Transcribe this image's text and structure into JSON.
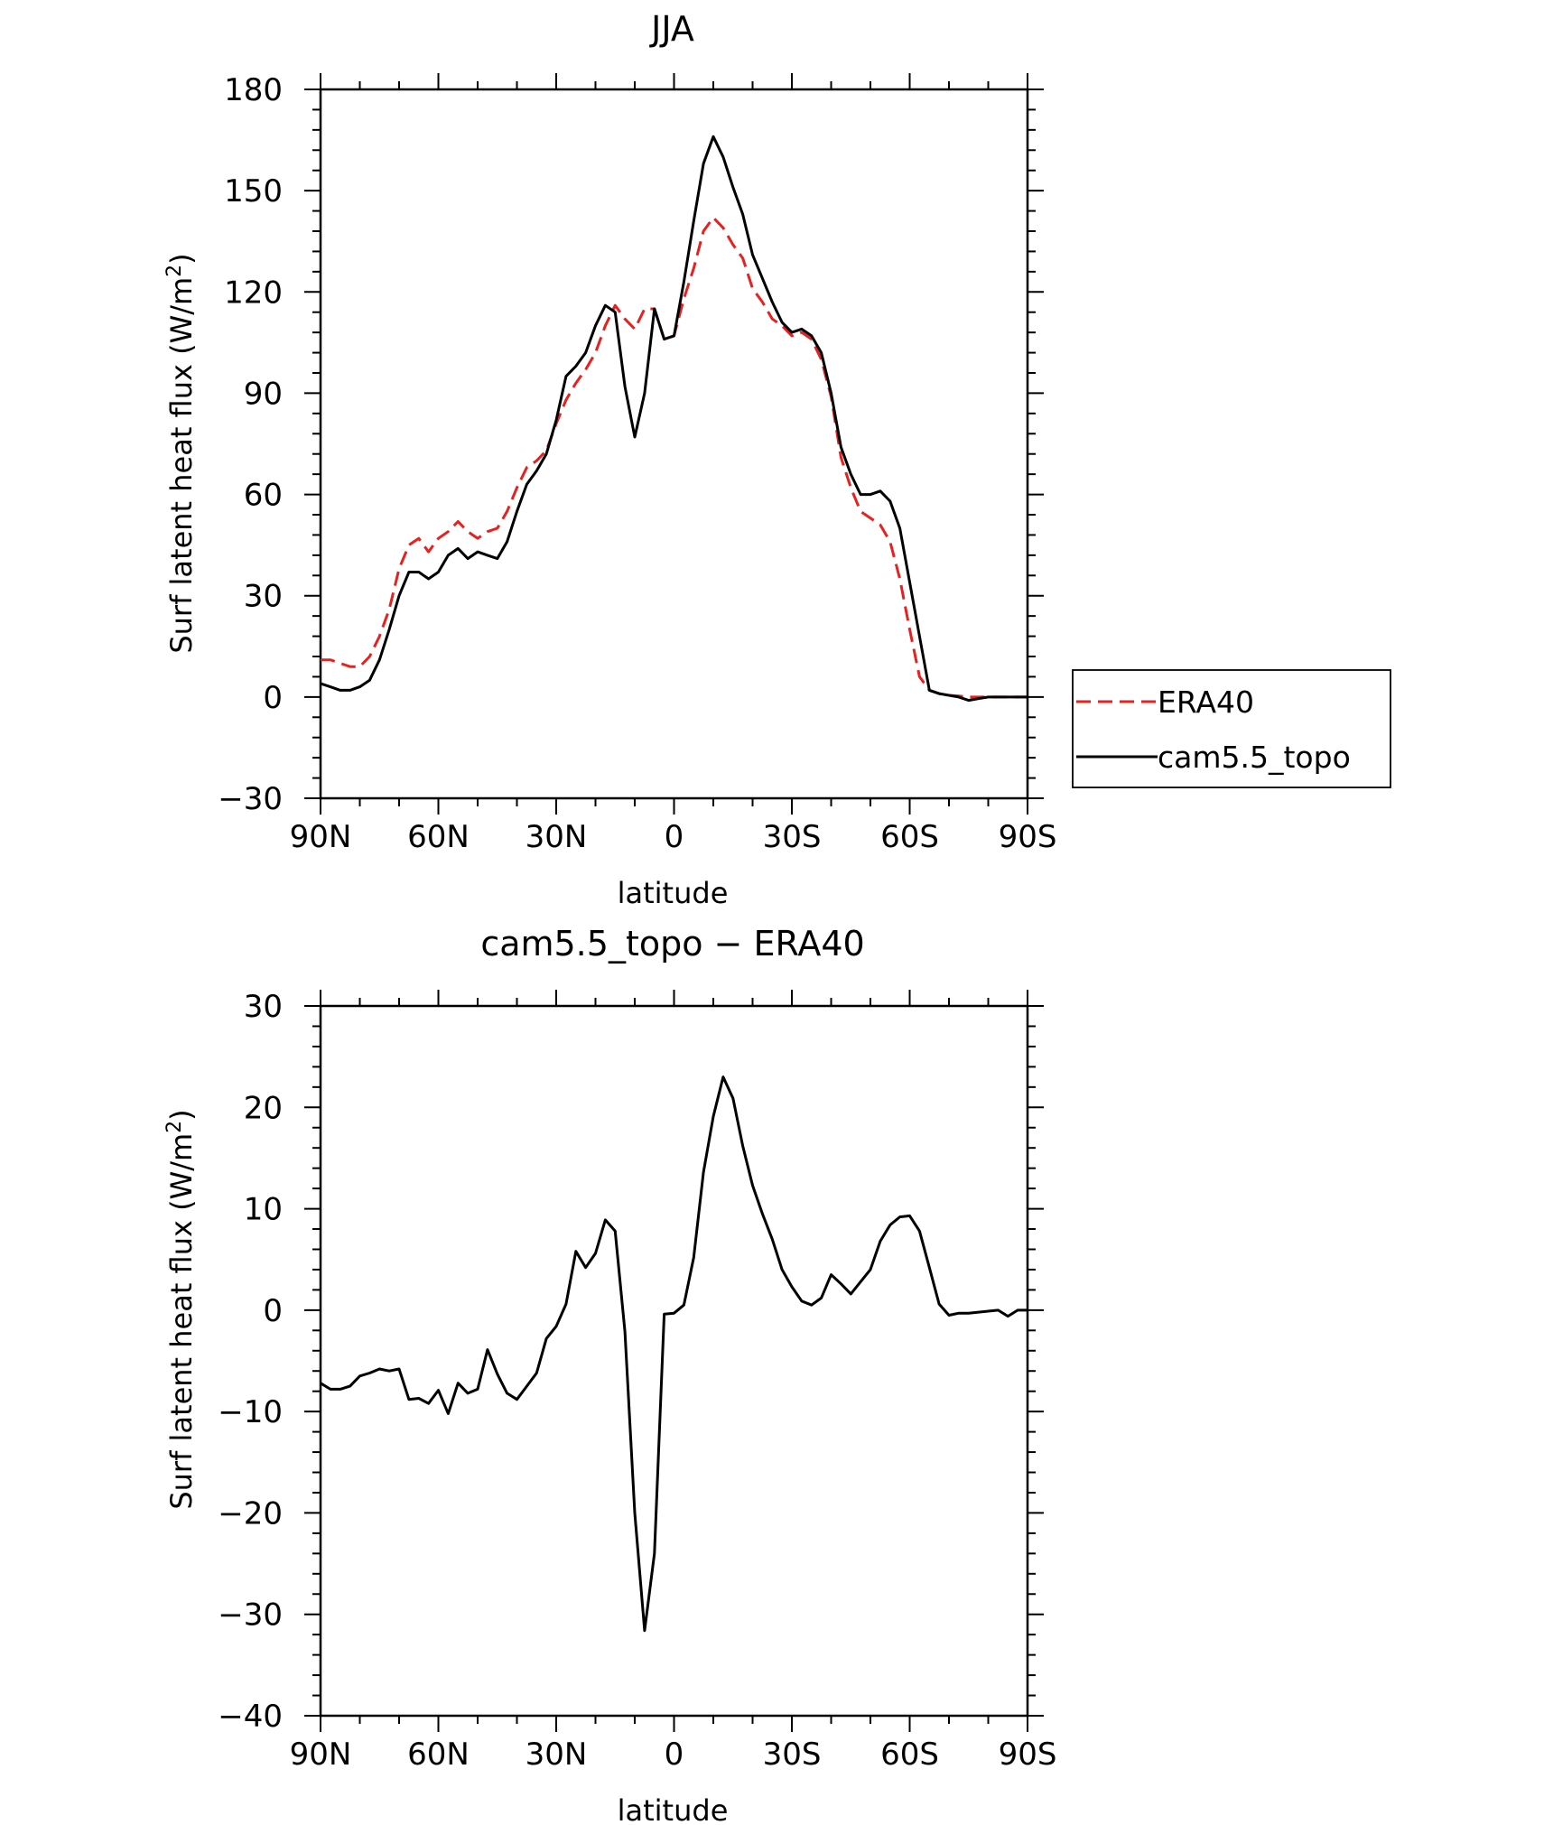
{
  "chart_data": [
    {
      "type": "line",
      "title": "JJA",
      "xlabel": "latitude",
      "ylabel": "Surf latent heat flux (W/m",
      "ylabel_sup": "2",
      "ylabel_tail": ")",
      "xlim": [
        90,
        -90
      ],
      "ylim": [
        -30,
        180
      ],
      "xticks": [
        90,
        60,
        30,
        0,
        -30,
        -60,
        -90
      ],
      "xtick_labels": [
        "90N",
        "60N",
        "30N",
        "0",
        "30S",
        "60S",
        "90S"
      ],
      "yticks": [
        -30,
        0,
        30,
        60,
        90,
        120,
        150,
        180
      ],
      "ytick_labels": [
        "−30",
        "0",
        "30",
        "60",
        "90",
        "120",
        "150",
        "180"
      ],
      "grid": false,
      "legend": "right",
      "series": [
        {
          "name": "ERA40",
          "color": "#e8201f",
          "dash": true,
          "x": [
            90,
            87.5,
            85,
            82.5,
            80,
            77.5,
            75,
            72.5,
            70,
            67.5,
            65,
            62.5,
            60,
            57.5,
            55,
            52.5,
            50,
            47.5,
            45,
            42.5,
            40,
            37.5,
            35,
            32.5,
            30,
            27.5,
            25,
            22.5,
            20,
            17.5,
            15,
            12.5,
            10,
            7.5,
            5,
            2.5,
            0,
            -2.5,
            -5,
            -7.5,
            -10,
            -12.5,
            -15,
            -17.5,
            -20,
            -22.5,
            -25,
            -27.5,
            -30,
            -32.5,
            -35,
            -37.5,
            -40,
            -42.5,
            -45,
            -47.5,
            -50,
            -52.5,
            -55,
            -57.5,
            -60,
            -62.5,
            -65,
            -67.5,
            -70,
            -72.5,
            -75,
            -77.5,
            -80,
            -82.5,
            -85,
            -87.5,
            -90
          ],
          "values": [
            11,
            11,
            10,
            9,
            9,
            12,
            18,
            26,
            38,
            45,
            47,
            43,
            47,
            49,
            52,
            49,
            47,
            49,
            50,
            55,
            62,
            68,
            70,
            73,
            81,
            88,
            93,
            97,
            102,
            110,
            116,
            112,
            109,
            115,
            115,
            106,
            107,
            118,
            127,
            138,
            142,
            139,
            134,
            130,
            121,
            117,
            112,
            110,
            107,
            108,
            106,
            100,
            89,
            71,
            62,
            55,
            53,
            51,
            46,
            35,
            20,
            6,
            2,
            1,
            0.5,
            0.3,
            0,
            0,
            0,
            0,
            0,
            0,
            0
          ]
        },
        {
          "name": "cam5.5_topo",
          "color": "#000000",
          "dash": false,
          "x": [
            90,
            87.5,
            85,
            82.5,
            80,
            77.5,
            75,
            72.5,
            70,
            67.5,
            65,
            62.5,
            60,
            57.5,
            55,
            52.5,
            50,
            47.5,
            45,
            42.5,
            40,
            37.5,
            35,
            32.5,
            30,
            27.5,
            25,
            22.5,
            20,
            17.5,
            15,
            12.5,
            10,
            7.5,
            5,
            2.5,
            0,
            -2.5,
            -5,
            -7.5,
            -10,
            -12.5,
            -15,
            -17.5,
            -20,
            -22.5,
            -25,
            -27.5,
            -30,
            -32.5,
            -35,
            -37.5,
            -40,
            -42.5,
            -45,
            -47.5,
            -50,
            -52.5,
            -55,
            -57.5,
            -60,
            -62.5,
            -65,
            -67.5,
            -70,
            -72.5,
            -75,
            -77.5,
            -80,
            -82.5,
            -85,
            -87.5,
            -90
          ],
          "values": [
            4,
            3,
            2,
            2,
            3,
            5,
            11,
            20,
            30,
            37,
            37,
            35,
            37,
            42,
            44,
            41,
            43,
            42,
            41,
            46,
            55,
            63,
            67,
            72,
            82,
            95,
            98,
            102,
            110,
            116,
            114,
            92,
            77,
            90,
            115,
            106,
            107,
            123,
            141,
            158,
            166,
            160,
            151,
            143,
            131,
            124,
            117,
            111,
            108,
            109,
            107,
            102,
            90,
            74,
            66,
            60,
            60,
            61,
            58,
            50,
            34,
            18,
            2,
            1,
            0.5,
            0,
            -1,
            -0.5,
            0,
            0,
            0,
            0,
            0
          ]
        }
      ]
    },
    {
      "type": "line",
      "title": "cam5.5_topo − ERA40",
      "xlabel": "latitude",
      "ylabel": "Surf latent heat flux (W/m",
      "ylabel_sup": "2",
      "ylabel_tail": ")",
      "xlim": [
        90,
        -90
      ],
      "ylim": [
        -40,
        30
      ],
      "xticks": [
        90,
        60,
        30,
        0,
        -30,
        -60,
        -90
      ],
      "xtick_labels": [
        "90N",
        "60N",
        "30N",
        "0",
        "30S",
        "60S",
        "90S"
      ],
      "yticks": [
        -40,
        -30,
        -20,
        -10,
        0,
        10,
        20,
        30
      ],
      "ytick_labels": [
        "−40",
        "−30",
        "−20",
        "−10",
        "0",
        "10",
        "20",
        "30"
      ],
      "grid": false,
      "series": [
        {
          "color": "#000000",
          "dash": false,
          "x": [
            90,
            87.5,
            85,
            82.5,
            80,
            77.5,
            75,
            72.5,
            70,
            67.5,
            65,
            62.5,
            60,
            57.5,
            55,
            52.5,
            50,
            47.5,
            45,
            42.5,
            40,
            37.5,
            35,
            32.5,
            30,
            27.5,
            25,
            22.5,
            20,
            17.5,
            15,
            12.5,
            10,
            7.5,
            5,
            2.5,
            0,
            -2.5,
            -5,
            -7.5,
            -10,
            -12.5,
            -15,
            -17.5,
            -20,
            -22.5,
            -25,
            -27.5,
            -30,
            -32.5,
            -35,
            -37.5,
            -40,
            -42.5,
            -45,
            -47.5,
            -50,
            -52.5,
            -55,
            -57.5,
            -60,
            -62.5,
            -65,
            -67.5,
            -70,
            -72.5,
            -75,
            -77.5,
            -80,
            -82.5,
            -85,
            -87.5,
            -90
          ],
          "values": [
            -7.2,
            -7.8,
            -7.8,
            -7.5,
            -6.5,
            -6.2,
            -5.8,
            -6.0,
            -5.8,
            -8.8,
            -8.7,
            -9.2,
            -7.9,
            -10.2,
            -7.2,
            -8.2,
            -7.8,
            -3.9,
            -6.3,
            -8.2,
            -8.8,
            -7.5,
            -6.2,
            -2.8,
            -1.6,
            0.6,
            5.8,
            4.2,
            5.6,
            8.9,
            7.8,
            -2.1,
            -20.0,
            -31.6,
            -24.0,
            -0.4,
            -0.3,
            0.5,
            5.2,
            13.6,
            19.1,
            23.0,
            20.9,
            16.2,
            12.3,
            9.5,
            7.0,
            4.0,
            2.3,
            0.9,
            0.5,
            1.2,
            3.5,
            2.6,
            1.6,
            2.8,
            4.0,
            6.8,
            8.4,
            9.2,
            9.3,
            7.8,
            4.2,
            0.6,
            -0.5,
            -0.3,
            -0.3,
            -0.2,
            -0.1,
            0,
            -0.6,
            0,
            0
          ]
        }
      ]
    }
  ]
}
